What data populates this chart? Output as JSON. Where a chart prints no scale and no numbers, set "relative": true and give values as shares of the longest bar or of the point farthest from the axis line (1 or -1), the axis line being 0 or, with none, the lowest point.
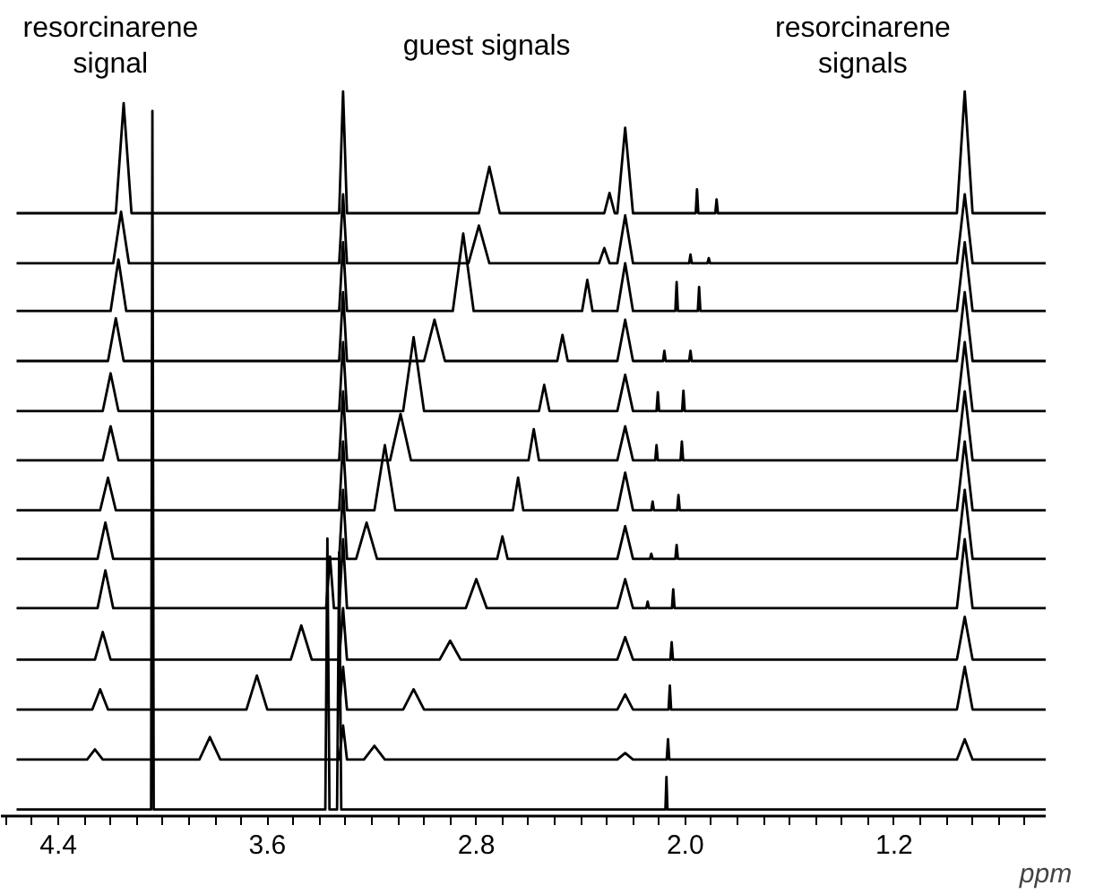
{
  "chart_data": {
    "type": "line",
    "relative": true,
    "xlabel": "ppm",
    "xlim": [
      4.62,
      0.62
    ],
    "xticks": [
      {
        "value": 4.6,
        "label": null
      },
      {
        "value": 4.5,
        "label": null
      },
      4.4,
      {
        "value": 4.3,
        "label": null
      },
      {
        "value": 4.2,
        "label": null
      },
      {
        "value": 4.1,
        "label": null
      },
      {
        "value": 4.0,
        "label": null
      },
      {
        "value": 3.9,
        "label": null
      },
      {
        "value": 3.8,
        "label": null
      },
      {
        "value": 3.7,
        "label": null
      },
      3.6,
      {
        "value": 3.5,
        "label": null
      },
      {
        "value": 3.4,
        "label": null
      },
      {
        "value": 3.3,
        "label": null
      },
      {
        "value": 3.2,
        "label": null
      },
      {
        "value": 3.1,
        "label": null
      },
      {
        "value": 3.0,
        "label": null
      },
      {
        "value": 2.9,
        "label": null
      },
      2.8,
      {
        "value": 2.7,
        "label": null
      },
      {
        "value": 2.6,
        "label": null
      },
      {
        "value": 2.5,
        "label": null
      },
      {
        "value": 2.4,
        "label": null
      },
      {
        "value": 2.3,
        "label": null
      },
      {
        "value": 2.2,
        "label": null
      },
      {
        "value": 2.1,
        "label": null
      },
      {
        "value": 2.0,
        "label": "2.0"
      },
      {
        "value": 1.9,
        "label": null
      },
      {
        "value": 1.8,
        "label": null
      },
      {
        "value": 1.7,
        "label": null
      },
      {
        "value": 1.6,
        "label": null
      },
      {
        "value": 1.5,
        "label": null
      },
      {
        "value": 1.4,
        "label": null
      },
      {
        "value": 1.3,
        "label": null
      },
      1.2,
      {
        "value": 1.1,
        "label": null
      },
      {
        "value": 1.0,
        "label": null
      },
      {
        "value": 0.9,
        "label": null
      },
      {
        "value": 0.8,
        "label": null
      },
      {
        "value": 0.7,
        "label": null
      }
    ],
    "annotations": [
      "resorcinarene signal",
      "guest signals",
      "resorcinarene signals"
    ],
    "series": [
      {
        "color": "#000000",
        "x": [
          4.56,
          4.18,
          4.15,
          4.12,
          3.325,
          3.31,
          3.295,
          2.79,
          2.75,
          2.71,
          2.31,
          2.29,
          2.27,
          2.26,
          2.23,
          2.2,
          1.96,
          1.955,
          1.95,
          1.885,
          1.88,
          1.875,
          0.96,
          0.93,
          0.9,
          0.62
        ],
        "values": [
          0.832,
          0.832,
          0.984,
          0.832,
          0.832,
          1.0,
          0.832,
          0.832,
          0.896,
          0.832,
          0.832,
          0.86,
          0.832,
          0.832,
          0.95,
          0.832,
          0.832,
          0.865,
          0.832,
          0.832,
          0.851,
          0.832,
          0.832,
          1.0,
          0.832,
          0.832
        ]
      },
      {
        "color": "#000000",
        "x": [
          4.56,
          4.19,
          4.16,
          4.13,
          3.325,
          3.31,
          3.295,
          2.83,
          2.79,
          2.75,
          2.33,
          2.31,
          2.29,
          2.26,
          2.23,
          2.2,
          1.985,
          1.98,
          1.975,
          1.915,
          1.91,
          1.905,
          0.96,
          0.93,
          0.9,
          0.62
        ],
        "values": [
          0.763,
          0.763,
          0.834,
          0.763,
          0.763,
          0.858,
          0.763,
          0.763,
          0.815,
          0.763,
          0.763,
          0.784,
          0.763,
          0.763,
          0.829,
          0.763,
          0.763,
          0.775,
          0.763,
          0.763,
          0.77,
          0.763,
          0.763,
          0.858,
          0.763,
          0.763
        ]
      },
      {
        "color": "#000000",
        "x": [
          4.56,
          4.2,
          4.17,
          4.14,
          3.325,
          3.31,
          3.295,
          2.89,
          2.85,
          2.81,
          2.395,
          2.375,
          2.355,
          2.26,
          2.23,
          2.2,
          2.038,
          2.033,
          2.028,
          1.952,
          1.947,
          1.942,
          0.96,
          0.93,
          0.9,
          0.62
        ],
        "values": [
          0.697,
          0.697,
          0.768,
          0.697,
          0.697,
          0.792,
          0.697,
          0.697,
          0.804,
          0.697,
          0.697,
          0.74,
          0.697,
          0.697,
          0.763,
          0.697,
          0.697,
          0.737,
          0.697,
          0.697,
          0.73,
          0.697,
          0.697,
          0.792,
          0.697,
          0.697
        ]
      },
      {
        "color": "#000000",
        "x": [
          4.56,
          4.21,
          4.18,
          4.15,
          3.325,
          3.31,
          3.295,
          3.0,
          2.96,
          2.92,
          2.49,
          2.47,
          2.45,
          2.26,
          2.23,
          2.2,
          2.085,
          2.08,
          2.075,
          1.985,
          1.98,
          1.975,
          0.96,
          0.93,
          0.9,
          0.62
        ],
        "values": [
          0.628,
          0.628,
          0.687,
          0.628,
          0.628,
          0.723,
          0.628,
          0.628,
          0.685,
          0.628,
          0.628,
          0.664,
          0.628,
          0.628,
          0.685,
          0.628,
          0.628,
          0.642,
          0.628,
          0.628,
          0.642,
          0.628,
          0.628,
          0.723,
          0.628,
          0.628
        ]
      },
      {
        "color": "#000000",
        "x": [
          4.56,
          4.23,
          4.2,
          4.17,
          3.325,
          3.31,
          3.295,
          3.08,
          3.04,
          3.0,
          2.56,
          2.54,
          2.52,
          2.26,
          2.23,
          2.2,
          2.11,
          2.105,
          2.1,
          2.012,
          2.007,
          2.002,
          0.96,
          0.93,
          0.9,
          0.62
        ],
        "values": [
          0.559,
          0.559,
          0.611,
          0.559,
          0.559,
          0.654,
          0.559,
          0.559,
          0.661,
          0.559,
          0.559,
          0.595,
          0.559,
          0.559,
          0.609,
          0.559,
          0.559,
          0.585,
          0.559,
          0.559,
          0.587,
          0.559,
          0.559,
          0.654,
          0.559,
          0.559
        ]
      },
      {
        "color": "#000000",
        "x": [
          4.56,
          4.23,
          4.2,
          4.17,
          3.325,
          3.31,
          3.295,
          3.13,
          3.09,
          3.05,
          2.6,
          2.58,
          2.56,
          2.26,
          2.23,
          2.2,
          2.115,
          2.11,
          2.105,
          2.018,
          2.013,
          2.008,
          0.96,
          0.93,
          0.9,
          0.62
        ],
        "values": [
          0.491,
          0.491,
          0.538,
          0.491,
          0.491,
          0.586,
          0.491,
          0.491,
          0.555,
          0.491,
          0.491,
          0.534,
          0.491,
          0.491,
          0.538,
          0.491,
          0.491,
          0.512,
          0.491,
          0.491,
          0.517,
          0.491,
          0.491,
          0.586,
          0.491,
          0.491
        ]
      },
      {
        "color": "#000000",
        "x": [
          4.56,
          4.24,
          4.21,
          4.18,
          3.325,
          3.31,
          3.295,
          3.19,
          3.15,
          3.11,
          2.66,
          2.64,
          2.62,
          2.26,
          2.23,
          2.2,
          2.13,
          2.125,
          2.12,
          2.031,
          2.026,
          2.021,
          0.96,
          0.93,
          0.9,
          0.62
        ],
        "values": [
          0.422,
          0.422,
          0.467,
          0.422,
          0.422,
          0.517,
          0.422,
          0.422,
          0.512,
          0.422,
          0.422,
          0.467,
          0.422,
          0.422,
          0.474,
          0.422,
          0.422,
          0.434,
          0.422,
          0.422,
          0.443,
          0.422,
          0.422,
          0.517,
          0.422,
          0.422
        ]
      },
      {
        "color": "#000000",
        "x": [
          4.56,
          4.25,
          4.22,
          4.19,
          3.325,
          3.31,
          3.295,
          3.26,
          3.22,
          3.18,
          2.72,
          2.7,
          2.68,
          2.26,
          2.23,
          2.2,
          2.135,
          2.13,
          2.125,
          2.038,
          2.033,
          2.028,
          0.96,
          0.93,
          0.9,
          0.62
        ],
        "values": [
          0.355,
          0.355,
          0.405,
          0.355,
          0.355,
          0.45,
          0.355,
          0.355,
          0.405,
          0.355,
          0.355,
          0.386,
          0.355,
          0.355,
          0.4,
          0.355,
          0.355,
          0.362,
          0.355,
          0.355,
          0.374,
          0.355,
          0.355,
          0.45,
          0.355,
          0.355
        ]
      },
      {
        "color": "#000000",
        "x": [
          4.56,
          4.25,
          4.22,
          4.19,
          3.375,
          3.36,
          3.345,
          3.325,
          3.31,
          3.295,
          2.84,
          2.8,
          2.76,
          2.26,
          2.23,
          2.2,
          2.149,
          2.144,
          2.139,
          2.051,
          2.046,
          2.041,
          0.96,
          0.93,
          0.9,
          0.62
        ],
        "values": [
          0.287,
          0.287,
          0.339,
          0.287,
          0.287,
          0.358,
          0.287,
          0.287,
          0.382,
          0.287,
          0.287,
          0.327,
          0.287,
          0.287,
          0.327,
          0.287,
          0.287,
          0.296,
          0.287,
          0.287,
          0.313,
          0.287,
          0.287,
          0.382,
          0.287,
          0.287
        ]
      },
      {
        "color": "#000000",
        "x": [
          4.56,
          4.26,
          4.23,
          4.2,
          3.51,
          3.47,
          3.43,
          3.325,
          3.31,
          3.295,
          2.94,
          2.9,
          2.86,
          2.26,
          2.23,
          2.2,
          2.057,
          2.052,
          2.047,
          0.96,
          0.93,
          0.9,
          0.62
        ],
        "values": [
          0.216,
          0.216,
          0.254,
          0.216,
          0.216,
          0.263,
          0.216,
          0.216,
          0.287,
          0.216,
          0.216,
          0.242,
          0.216,
          0.216,
          0.247,
          0.216,
          0.216,
          0.24,
          0.216,
          0.216,
          0.275,
          0.216,
          0.216
        ]
      },
      {
        "color": "#000000",
        "x": [
          4.56,
          4.27,
          4.24,
          4.21,
          3.68,
          3.64,
          3.6,
          3.325,
          3.31,
          3.295,
          3.08,
          3.04,
          3.0,
          2.26,
          2.23,
          2.2,
          2.064,
          2.059,
          2.054,
          0.96,
          0.93,
          0.9,
          0.62
        ],
        "values": [
          0.147,
          0.147,
          0.175,
          0.147,
          0.147,
          0.194,
          0.147,
          0.147,
          0.206,
          0.147,
          0.147,
          0.175,
          0.147,
          0.147,
          0.168,
          0.147,
          0.147,
          0.18,
          0.147,
          0.147,
          0.206,
          0.147,
          0.147
        ]
      },
      {
        "color": "#000000",
        "x": [
          4.56,
          4.29,
          4.26,
          4.23,
          3.86,
          3.82,
          3.78,
          3.325,
          3.31,
          3.295,
          3.23,
          3.19,
          3.15,
          2.26,
          2.23,
          2.2,
          2.071,
          2.066,
          2.061,
          0.96,
          0.93,
          0.9,
          0.62
        ],
        "values": [
          0.078,
          0.078,
          0.092,
          0.078,
          0.078,
          0.109,
          0.078,
          0.078,
          0.125,
          0.078,
          0.078,
          0.097,
          0.078,
          0.078,
          0.087,
          0.078,
          0.078,
          0.106,
          0.078,
          0.078,
          0.106,
          0.078,
          0.078
        ]
      },
      {
        "color": "#000000",
        "x": [
          4.56,
          4.045,
          4.04,
          4.035,
          3.378,
          3.37,
          3.362,
          3.333,
          3.325,
          3.317,
          2.076,
          2.072,
          2.068,
          0.62
        ],
        "values": [
          0.009,
          0.009,
          0.973,
          0.009,
          0.009,
          0.383,
          0.009,
          0.009,
          0.364,
          0.009,
          0.009,
          0.054,
          0.009,
          0.009
        ]
      }
    ]
  }
}
